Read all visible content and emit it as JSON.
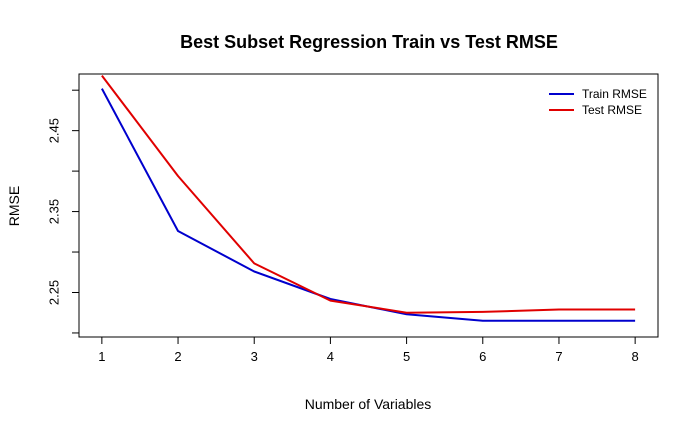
{
  "chart_data": {
    "type": "line",
    "title": "Best Subset Regression Train vs Test RMSE",
    "xlabel": "Number of Variables",
    "ylabel": "RMSE",
    "x": [
      1,
      2,
      3,
      4,
      5,
      6,
      7,
      8
    ],
    "xticks": [
      "1",
      "2",
      "3",
      "4",
      "5",
      "6",
      "7",
      "8"
    ],
    "yticks": [
      "2.25",
      "2.35",
      "2.45"
    ],
    "xlim": [
      0.7,
      8.3
    ],
    "ylim": [
      2.195,
      2.52
    ],
    "grid": false,
    "legend_position": "top-right",
    "series": [
      {
        "name": "Train RMSE",
        "color": "#0000CD",
        "values": [
          2.502,
          2.326,
          2.276,
          2.242,
          2.223,
          2.215,
          2.215,
          2.215
        ]
      },
      {
        "name": "Test RMSE",
        "color": "#E00000",
        "values": [
          2.518,
          2.394,
          2.286,
          2.24,
          2.225,
          2.226,
          2.229,
          2.229
        ]
      }
    ]
  }
}
